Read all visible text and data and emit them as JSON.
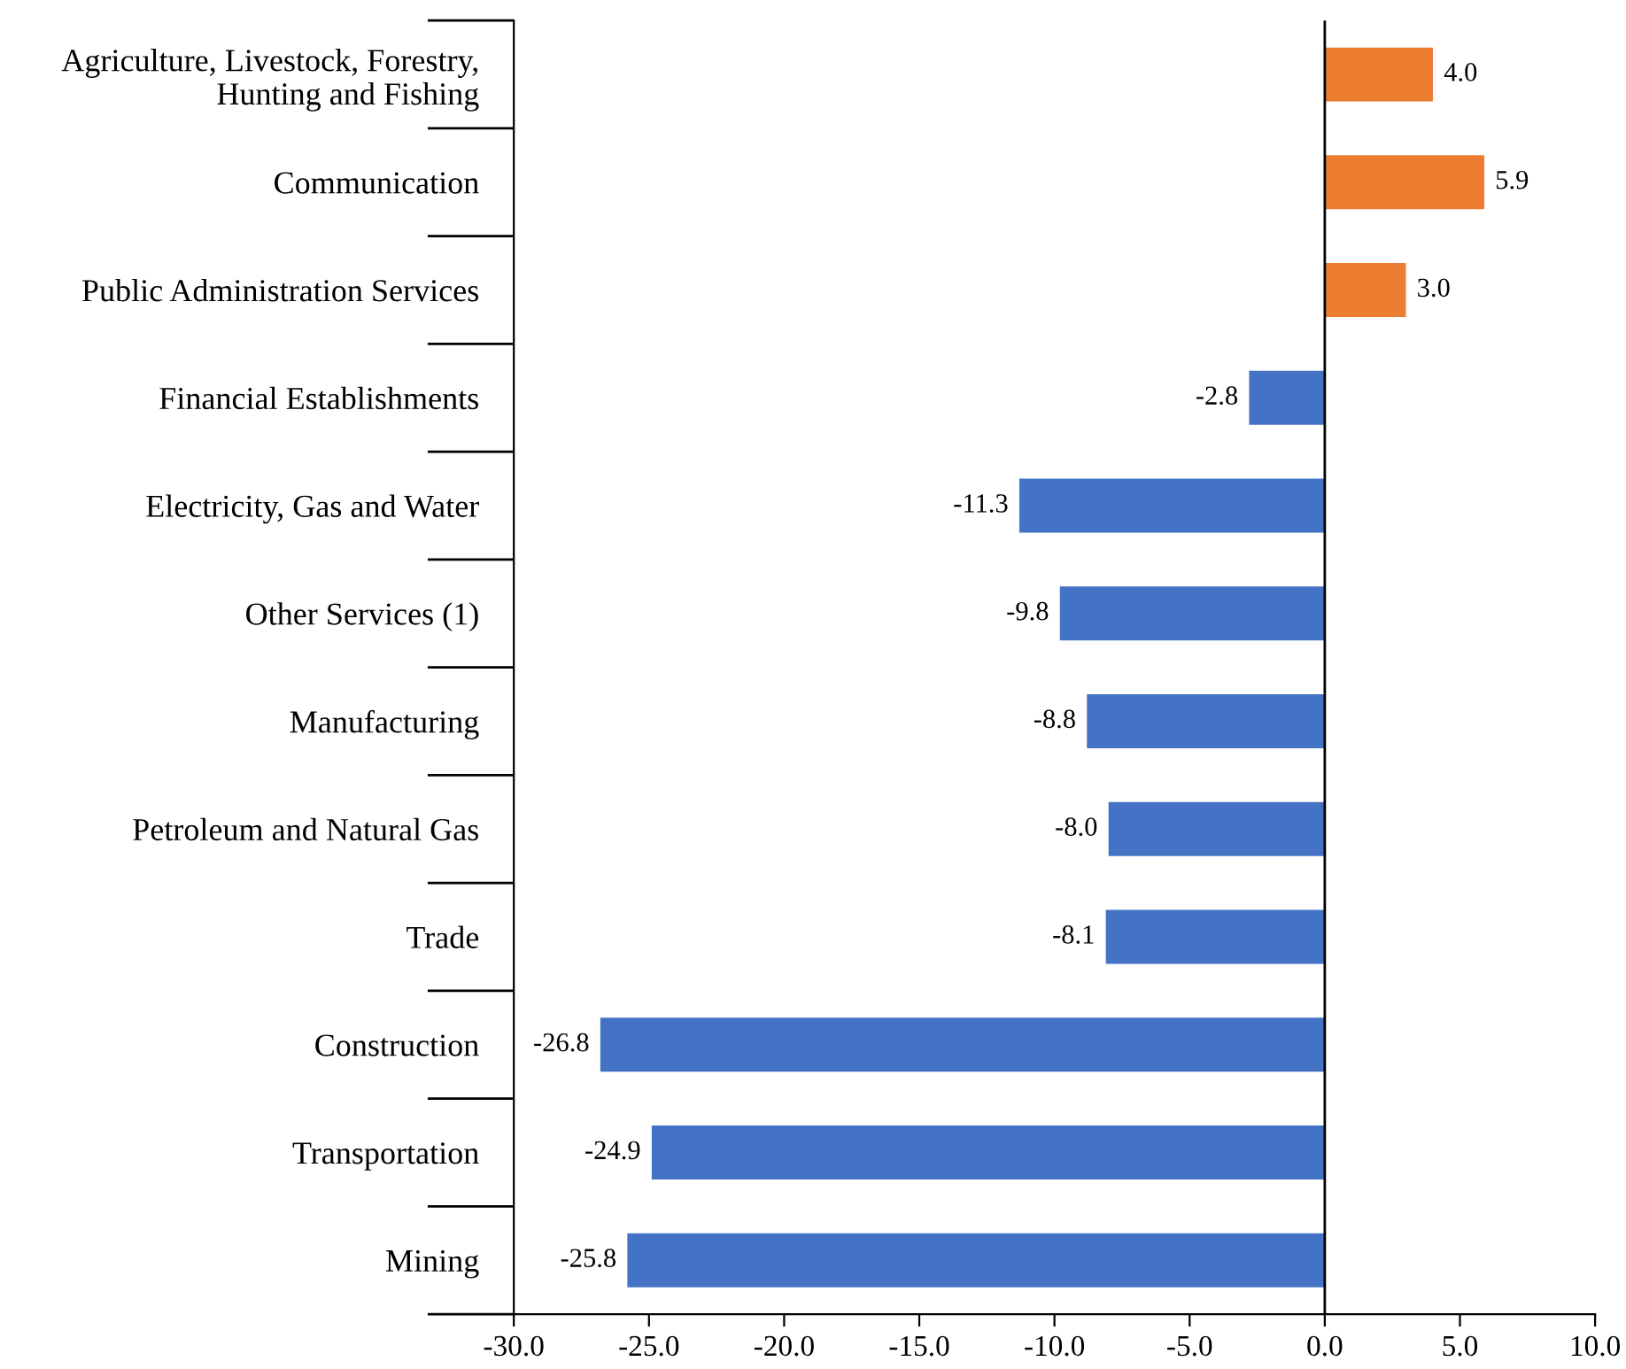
{
  "chart_data": {
    "type": "bar",
    "orientation": "horizontal",
    "categories": [
      "Agriculture, Livestock, Forestry,\nHunting and Fishing",
      "Communication",
      "Public Administration Services",
      "Financial Establishments",
      "Electricity, Gas and Water",
      "Other Services (1)",
      "Manufacturing",
      "Petroleum and Natural Gas",
      "Trade",
      "Construction",
      "Transportation",
      "Mining"
    ],
    "values": [
      4.0,
      5.9,
      3.0,
      -2.8,
      -11.3,
      -9.8,
      -8.8,
      -8.0,
      -8.1,
      -26.8,
      -24.9,
      -25.8
    ],
    "colors": [
      "#ed7d31",
      "#ed7d31",
      "#ed7d31",
      "#4472c4",
      "#4472c4",
      "#4472c4",
      "#4472c4",
      "#4472c4",
      "#4472c4",
      "#4472c4",
      "#4472c4",
      "#4472c4"
    ],
    "value_labels": [
      "4.0",
      "5.9",
      "3.0",
      "-2.8",
      "-11.3",
      "-9.8",
      "-8.8",
      "-8.0",
      "-8.1",
      "-26.8",
      "-24.9",
      "-25.8"
    ],
    "xlim": [
      -30,
      10
    ],
    "xticks": [
      {
        "value": -30,
        "label": "-30.0"
      },
      {
        "value": -25,
        "label": "-25.0"
      },
      {
        "value": -20,
        "label": "-20.0"
      },
      {
        "value": -15,
        "label": "-15.0"
      },
      {
        "value": -10,
        "label": "-10.0"
      },
      {
        "value": -5,
        "label": "-5.0"
      },
      {
        "value": 0,
        "label": "0.0"
      },
      {
        "value": 5,
        "label": "5.0"
      },
      {
        "value": 10,
        "label": "10.0"
      }
    ],
    "ref_lines": [
      {
        "axis": "x",
        "value": 0,
        "color": "#000000"
      }
    ],
    "grid": false,
    "legend": false
  }
}
